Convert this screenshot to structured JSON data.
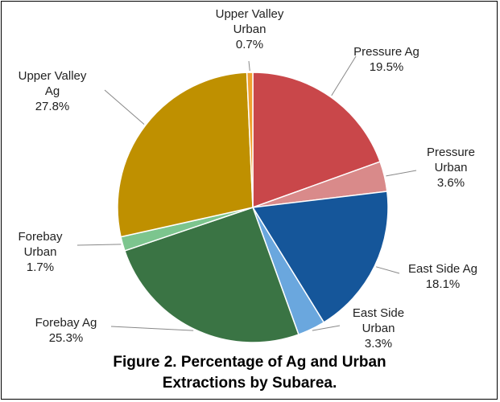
{
  "chart_data": {
    "type": "pie",
    "title": "Figure 2. Percentage of Ag and Urban Extractions by Subarea.",
    "categories": [
      "Pressure Ag",
      "Pressure Urban",
      "East Side Ag",
      "East Side Urban",
      "Forebay Ag",
      "Forebay Urban",
      "Upper Valley Ag",
      "Upper Valley Urban"
    ],
    "values": [
      19.5,
      3.6,
      18.1,
      3.3,
      25.3,
      1.7,
      27.8,
      0.7
    ],
    "value_labels": [
      "19.5%",
      "3.6%",
      "18.1%",
      "3.3%",
      "25.3%",
      "1.7%",
      "27.8%",
      "0.7%"
    ],
    "colors": [
      "#c9474a",
      "#d98a8a",
      "#15569a",
      "#6aa7de",
      "#3a7444",
      "#7cc58e",
      "#bf9000",
      "#f0a030"
    ]
  }
}
